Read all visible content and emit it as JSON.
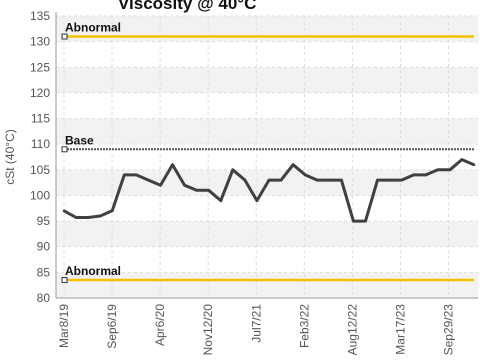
{
  "chart_data": {
    "type": "line",
    "title": "Viscosity @ 40°C",
    "ylabel": "cSt (40°C)",
    "xlabel": "",
    "ylim": [
      80,
      135
    ],
    "yticks": [
      80,
      85,
      90,
      95,
      100,
      105,
      110,
      115,
      120,
      125,
      130,
      135
    ],
    "x_tick_labels": [
      "Mar8/19",
      "Sep6/19",
      "Apr6/20",
      "Nov12/20",
      "Jul7/21",
      "Feb3/22",
      "Aug12/22",
      "Mar17/23",
      "Sep29/23"
    ],
    "grid": true,
    "series": [
      {
        "name": "",
        "color": "#404040",
        "values": [
          97,
          95.7,
          95.7,
          96,
          97,
          104,
          104,
          103,
          102,
          106,
          102,
          101,
          101,
          99,
          105,
          103,
          99,
          103,
          103,
          106,
          104,
          103,
          103,
          103,
          95,
          95,
          103,
          103,
          103,
          104,
          104,
          105,
          105,
          107,
          106
        ]
      }
    ],
    "reference_lines": [
      {
        "label": "Abnormal",
        "value": 131,
        "color": "#f2c200"
      },
      {
        "label": "Base",
        "value": 109,
        "color": "#555555"
      },
      {
        "label": "Abnormal",
        "value": 83.5,
        "color": "#f2c200"
      }
    ]
  }
}
